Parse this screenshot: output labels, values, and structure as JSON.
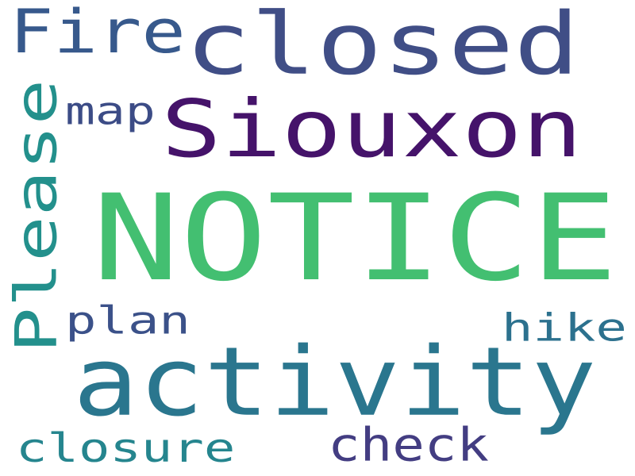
{
  "words": [
    {
      "key": "notice",
      "text": "NOTICE",
      "color": "#43bf71",
      "rotated": false
    },
    {
      "key": "siouxon",
      "text": "Siouxon",
      "color": "#45136a",
      "rotated": false
    },
    {
      "key": "activity",
      "text": "activity",
      "color": "#2a768e",
      "rotated": false
    },
    {
      "key": "closed",
      "text": "closed",
      "color": "#404e86",
      "rotated": false
    },
    {
      "key": "please",
      "text": "Please",
      "color": "#23908c",
      "rotated": true
    },
    {
      "key": "fire",
      "text": "Fire",
      "color": "#37598c",
      "rotated": false
    },
    {
      "key": "map",
      "text": "map",
      "color": "#3c4c86",
      "rotated": false
    },
    {
      "key": "plan",
      "text": "plan",
      "color": "#3b5189",
      "rotated": false
    },
    {
      "key": "hike",
      "text": "hike",
      "color": "#2c718e",
      "rotated": false
    },
    {
      "key": "check",
      "text": "check",
      "color": "#433d82",
      "rotated": false
    },
    {
      "key": "closure",
      "text": "closure",
      "color": "#25858e",
      "rotated": false
    }
  ]
}
